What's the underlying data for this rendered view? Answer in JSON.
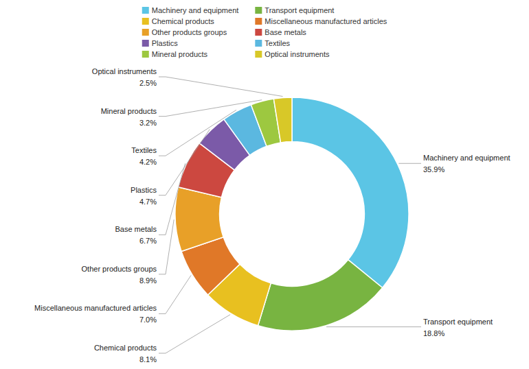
{
  "chart_data": {
    "type": "donut",
    "categories": [
      "Machinery and equipment",
      "Transport equipment",
      "Chemical products",
      "Miscellaneous manufactured articles",
      "Other products groups",
      "Base metals",
      "Plastics",
      "Textiles",
      "Mineral products",
      "Optical instruments"
    ],
    "values": [
      35.9,
      18.8,
      8.1,
      7.0,
      8.9,
      6.7,
      4.7,
      4.2,
      3.2,
      2.5
    ],
    "value_labels": [
      "35.9%",
      "18.8%",
      "8.1%",
      "7.0%",
      "8.9%",
      "6.7%",
      "4.7%",
      "4.2%",
      "3.2%",
      "2.5%"
    ],
    "colors": [
      "#5BC5E5",
      "#78B441",
      "#E8C020",
      "#E07828",
      "#E8A028",
      "#CC4840",
      "#7B5AA8",
      "#5BB8E0",
      "#9DC840",
      "#D8C828"
    ],
    "data_labels": true,
    "legend": "top"
  }
}
